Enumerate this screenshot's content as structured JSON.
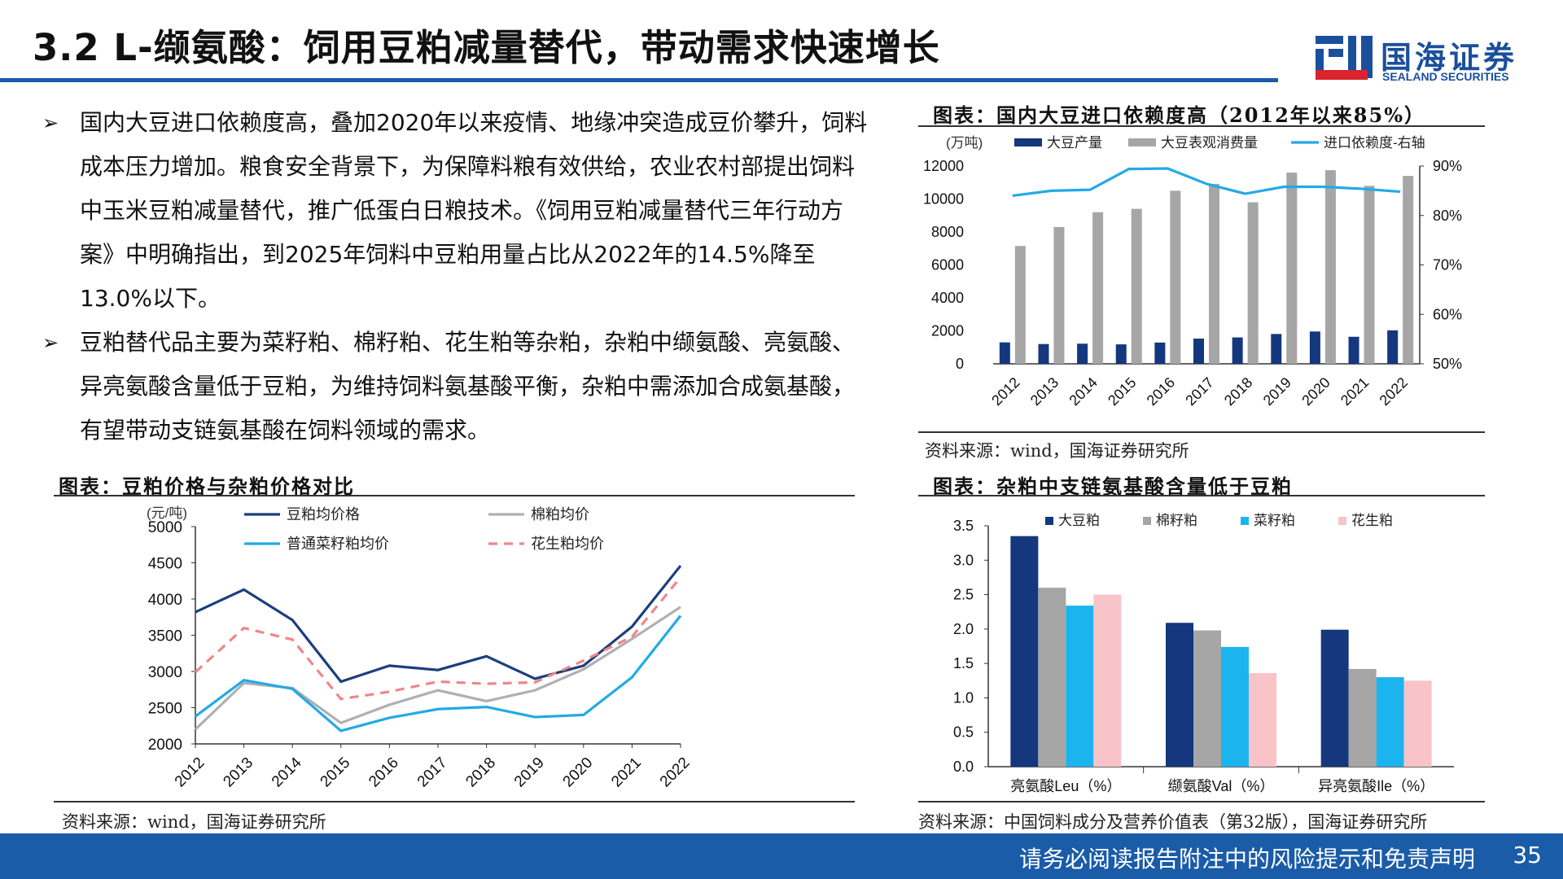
{
  "slide": {
    "title": "3.2 L-缬氨酸：饲用豆粕减量替代，带动需求快速增长",
    "logo_cn": "国海证券",
    "logo_en": "SEALAND SECURITIES",
    "bullets": [
      "国内大豆进口依赖度高，叠加2020年以来疫情、地缘冲突造成豆价攀升，饲料成本压力增加。粮食安全背景下，为保障料粮有效供给，农业农村部提出饲料中玉米豆粕减量替代，推广低蛋白日粮技术。《饲用豆粕减量替代三年行动方案》中明确指出，到2025年饲料中豆粕用量占比从2022年的14.5%降至13.0%以下。",
      "豆粕替代品主要为菜籽粕、棉籽粕、花生粕等杂粕，杂粕中缬氨酸、亮氨酸、异亮氨酸含量低于豆粕，为维持饲料氨基酸平衡，杂粕中需添加合成氨基酸，有望带动支链氨基酸在饲料领域的需求。"
    ],
    "bullet_marker": "➢",
    "footer_text": "请务必阅读报告附注中的风险提示和免责声明",
    "page_number": "35"
  },
  "chart_data": [
    {
      "type": "line",
      "panel_title": "图表：豆粕价格与杂粕价格对比",
      "unit_label": "(元/吨)",
      "x": [
        "2012",
        "2013",
        "2014",
        "2015",
        "2016",
        "2017",
        "2018",
        "2019",
        "2020",
        "2021",
        "2022"
      ],
      "ylim": [
        2000,
        5000
      ],
      "yticks": [
        "2000",
        "2500",
        "3000",
        "3500",
        "4000",
        "4500",
        "5000"
      ],
      "series": [
        {
          "name": "豆粕均价格",
          "color": "#1b3f7e",
          "dash": false,
          "values": [
            3820,
            4130,
            3710,
            2860,
            3080,
            3020,
            3210,
            2900,
            3080,
            3620,
            4460
          ]
        },
        {
          "name": "棉粕均价",
          "color": "#b0b0b0",
          "dash": false,
          "values": [
            2200,
            2840,
            2770,
            2290,
            2540,
            2740,
            2590,
            2740,
            3030,
            3450,
            3890
          ]
        },
        {
          "name": "普通菜籽粕均价",
          "color": "#22aae6",
          "dash": false,
          "values": [
            2380,
            2880,
            2760,
            2180,
            2360,
            2480,
            2510,
            2370,
            2400,
            2920,
            3770
          ]
        },
        {
          "name": "花生粕均价",
          "color": "#f0868a",
          "dash": true,
          "values": [
            2990,
            3600,
            3440,
            2620,
            2720,
            2860,
            2830,
            2850,
            3150,
            3480,
            4300
          ]
        }
      ],
      "source": "资料来源：wind，国海证券研究所"
    },
    {
      "type": "bar",
      "panel_title": "图表：国内大豆进口依赖度高（2012年以来85%）",
      "unit_label": "(万吨)",
      "categories": [
        "2012",
        "2013",
        "2014",
        "2015",
        "2016",
        "2017",
        "2018",
        "2019",
        "2020",
        "2021",
        "2022"
      ],
      "ylim": [
        0,
        12000
      ],
      "yticks": [
        "0",
        "2000",
        "4000",
        "6000",
        "8000",
        "10000",
        "12000"
      ],
      "y2lim": [
        50,
        90
      ],
      "y2ticks": [
        "50%",
        "60%",
        "70%",
        "80%",
        "90%"
      ],
      "series": [
        {
          "name": "大豆产量",
          "color": "#14377d",
          "values": [
            1300,
            1200,
            1220,
            1180,
            1290,
            1530,
            1600,
            1810,
            1960,
            1640,
            2030
          ]
        },
        {
          "name": "大豆表观消费量",
          "color": "#a6a6a6",
          "values": [
            7150,
            8300,
            9200,
            9400,
            10500,
            10920,
            9800,
            11600,
            11750,
            10800,
            11400
          ]
        },
        {
          "name": "进口依赖度-右轴",
          "color": "#22aae6",
          "axis": "right",
          "values": [
            84,
            85,
            85.2,
            89.4,
            89.5,
            86.4,
            84.4,
            85.8,
            85.8,
            85.4,
            84.8
          ]
        }
      ],
      "source": "资料来源：wind，国海证券研究所"
    },
    {
      "type": "bar",
      "panel_title": "图表：杂粕中支链氨基酸含量低于豆粕",
      "categories": [
        "亮氨酸Leu（%）",
        "缬氨酸Val（%）",
        "异亮氨酸Ile（%）"
      ],
      "ylim": [
        0,
        3.5
      ],
      "yticks": [
        "0.0",
        "0.5",
        "1.0",
        "1.5",
        "2.0",
        "2.5",
        "3.0",
        "3.5"
      ],
      "series": [
        {
          "name": "大豆粕",
          "color": "#14377d",
          "values": [
            3.35,
            2.09,
            1.99
          ]
        },
        {
          "name": "棉籽粕",
          "color": "#a6a6a6",
          "values": [
            2.6,
            1.98,
            1.42
          ]
        },
        {
          "name": "菜籽粕",
          "color": "#1cb4ef",
          "values": [
            2.34,
            1.74,
            1.3
          ]
        },
        {
          "name": "花生粕",
          "color": "#f8c4c8",
          "values": [
            2.5,
            1.36,
            1.25
          ]
        }
      ],
      "source": "资料来源：中国饲料成分及营养价值表（第32版），国海证券研究所"
    }
  ]
}
